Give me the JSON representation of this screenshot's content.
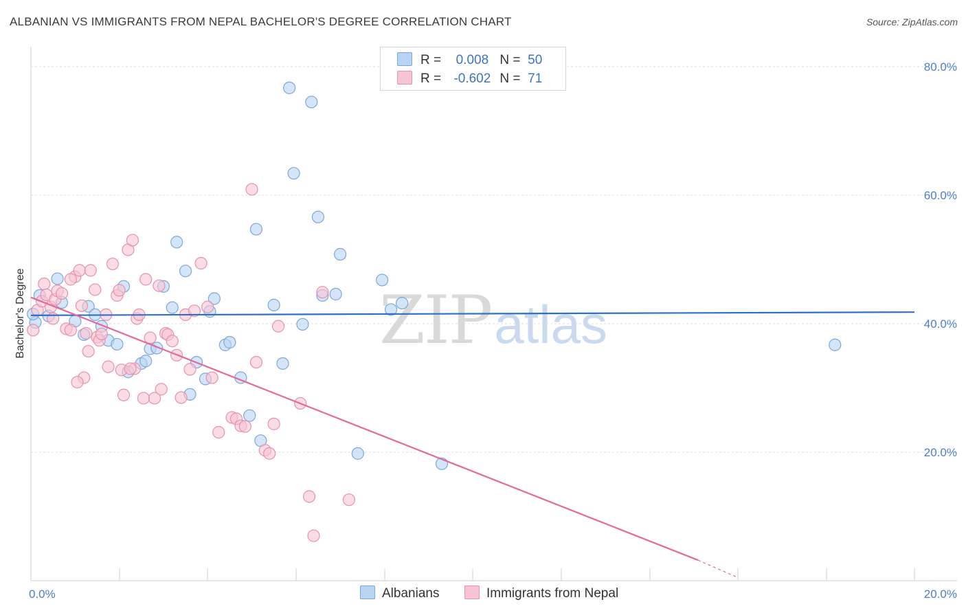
{
  "header": {
    "title": "ALBANIAN VS IMMIGRANTS FROM NEPAL BACHELOR'S DEGREE CORRELATION CHART",
    "source": "Source: ZipAtlas.com"
  },
  "watermark": {
    "zip": "ZIP",
    "atlas": "atlas"
  },
  "legend": {
    "rows": [
      {
        "r_label": "R = ",
        "r_value": "0.008",
        "n_label": "N = ",
        "n_value": "50"
      },
      {
        "r_label": "R = ",
        "r_value": "-0.602",
        "n_label": "N = ",
        "n_value": "71"
      }
    ]
  },
  "bottom_legend": {
    "series1": "Albanians",
    "series2": "Immigrants from Nepal"
  },
  "colors": {
    "blue_fill": "#b9d4f3",
    "blue_stroke": "#7aa7dc",
    "blue_line": "#2e6fc9",
    "pink_fill": "#f7c4d4",
    "pink_stroke": "#e890ac",
    "pink_line": "#e2699a",
    "grid": "#dddddd",
    "tick_text": "#4a7fc8"
  },
  "chart_data": {
    "type": "scatter",
    "title": "ALBANIAN VS IMMIGRANTS FROM NEPAL BACHELOR'S DEGREE CORRELATION CHART",
    "xlabel": "",
    "ylabel": "Bachelor's Degree",
    "xlim": [
      0,
      20
    ],
    "ylim": [
      0,
      80
    ],
    "x_tick_labels": [
      "0.0%",
      "20.0%"
    ],
    "y_ticks": [
      20,
      40,
      60,
      80
    ],
    "y_tick_labels": [
      "20.0%",
      "40.0%",
      "60.0%",
      "80.0%"
    ],
    "series": [
      {
        "name": "Albanians",
        "R": 0.008,
        "N": 50,
        "trend": {
          "x": [
            0,
            20
          ],
          "y": [
            41.3,
            41.8
          ]
        },
        "points": [
          [
            0.1,
            40.2
          ],
          [
            0.2,
            44.4
          ],
          [
            0.4,
            41.2
          ],
          [
            0.6,
            47.0
          ],
          [
            0.7,
            43.3
          ],
          [
            1.0,
            40.4
          ],
          [
            1.2,
            38.3
          ],
          [
            1.3,
            42.7
          ],
          [
            1.45,
            41.4
          ],
          [
            1.6,
            39.6
          ],
          [
            1.75,
            37.4
          ],
          [
            1.95,
            36.8
          ],
          [
            2.1,
            45.8
          ],
          [
            2.2,
            32.5
          ],
          [
            2.5,
            33.8
          ],
          [
            2.6,
            34.2
          ],
          [
            2.7,
            36.1
          ],
          [
            2.85,
            36.2
          ],
          [
            3.0,
            45.8
          ],
          [
            3.2,
            42.5
          ],
          [
            3.3,
            52.7
          ],
          [
            3.5,
            48.2
          ],
          [
            3.6,
            29.0
          ],
          [
            3.75,
            34.0
          ],
          [
            3.95,
            31.4
          ],
          [
            4.05,
            41.9
          ],
          [
            4.15,
            43.9
          ],
          [
            4.4,
            36.7
          ],
          [
            4.5,
            37.1
          ],
          [
            4.75,
            31.6
          ],
          [
            4.95,
            25.7
          ],
          [
            5.1,
            54.7
          ],
          [
            5.2,
            21.8
          ],
          [
            5.5,
            42.9
          ],
          [
            5.7,
            33.8
          ],
          [
            5.85,
            76.7
          ],
          [
            5.95,
            63.4
          ],
          [
            6.15,
            39.9
          ],
          [
            6.35,
            74.5
          ],
          [
            6.5,
            56.6
          ],
          [
            6.6,
            44.4
          ],
          [
            6.9,
            44.6
          ],
          [
            7.0,
            50.8
          ],
          [
            7.4,
            19.8
          ],
          [
            7.95,
            46.8
          ],
          [
            8.15,
            42.2
          ],
          [
            8.4,
            43.2
          ],
          [
            9.3,
            18.2
          ],
          [
            18.2,
            36.7
          ],
          [
            0.05,
            41.5
          ]
        ]
      },
      {
        "name": "Immigrants from Nepal",
        "R": -0.602,
        "N": 71,
        "trend": {
          "x": [
            0,
            15.1
          ],
          "y": [
            44.1,
            3.2
          ]
        },
        "trend_dashed": {
          "x": [
            15.1,
            16.0
          ],
          "y": [
            3.2,
            0.5
          ]
        },
        "points": [
          [
            0.05,
            39.0
          ],
          [
            0.15,
            42.1
          ],
          [
            0.25,
            43.5
          ],
          [
            0.3,
            46.2
          ],
          [
            0.35,
            44.5
          ],
          [
            0.45,
            42.6
          ],
          [
            0.5,
            40.8
          ],
          [
            0.55,
            43.8
          ],
          [
            0.6,
            45.1
          ],
          [
            0.7,
            44.7
          ],
          [
            0.8,
            39.2
          ],
          [
            0.9,
            39.0
          ],
          [
            1.0,
            47.3
          ],
          [
            0.9,
            46.9
          ],
          [
            1.1,
            48.3
          ],
          [
            1.15,
            42.8
          ],
          [
            1.25,
            38.5
          ],
          [
            1.3,
            35.7
          ],
          [
            1.35,
            48.3
          ],
          [
            1.45,
            45.3
          ],
          [
            1.5,
            37.9
          ],
          [
            1.55,
            37.4
          ],
          [
            1.6,
            38.4
          ],
          [
            1.7,
            41.4
          ],
          [
            1.75,
            33.3
          ],
          [
            1.85,
            49.3
          ],
          [
            1.95,
            44.4
          ],
          [
            2.0,
            45.2
          ],
          [
            2.05,
            32.8
          ],
          [
            2.1,
            28.9
          ],
          [
            2.2,
            51.5
          ],
          [
            2.3,
            53.0
          ],
          [
            2.35,
            33.0
          ],
          [
            2.4,
            40.8
          ],
          [
            2.45,
            41.4
          ],
          [
            2.55,
            28.4
          ],
          [
            2.6,
            46.9
          ],
          [
            2.7,
            37.8
          ],
          [
            2.8,
            28.4
          ],
          [
            2.9,
            45.9
          ],
          [
            2.95,
            29.8
          ],
          [
            3.05,
            38.5
          ],
          [
            3.1,
            38.3
          ],
          [
            3.2,
            37.3
          ],
          [
            3.3,
            35.1
          ],
          [
            3.4,
            28.5
          ],
          [
            3.5,
            41.4
          ],
          [
            3.6,
            32.9
          ],
          [
            3.7,
            42.0
          ],
          [
            3.85,
            49.4
          ],
          [
            4.0,
            42.6
          ],
          [
            4.1,
            31.6
          ],
          [
            4.25,
            23.1
          ],
          [
            4.55,
            25.4
          ],
          [
            4.65,
            25.2
          ],
          [
            4.75,
            24.1
          ],
          [
            4.85,
            24.0
          ],
          [
            5.0,
            60.9
          ],
          [
            5.1,
            34.0
          ],
          [
            5.3,
            20.3
          ],
          [
            5.4,
            19.8
          ],
          [
            5.5,
            24.4
          ],
          [
            5.6,
            39.6
          ],
          [
            6.1,
            27.6
          ],
          [
            6.3,
            13.1
          ],
          [
            6.4,
            7.0
          ],
          [
            6.6,
            44.9
          ],
          [
            7.2,
            12.6
          ],
          [
            1.2,
            31.6
          ],
          [
            1.05,
            30.9
          ],
          [
            2.25,
            33.0
          ]
        ]
      }
    ]
  }
}
